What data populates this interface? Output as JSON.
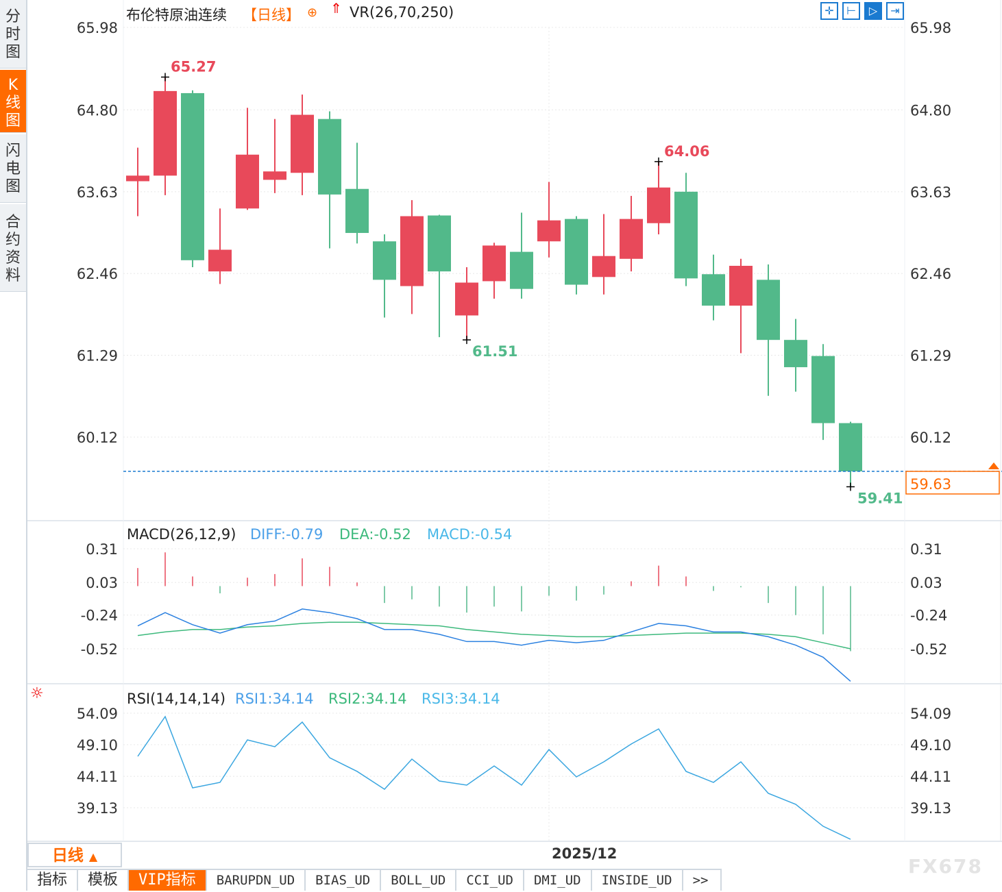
{
  "sidebar": {
    "items": [
      {
        "label": "分时图"
      },
      {
        "label": "K线图",
        "active": true
      },
      {
        "label": "闪电图"
      },
      {
        "label": "合约资料"
      }
    ]
  },
  "header": {
    "symbol": "布伦特原油连续",
    "period_tag": "【日线】",
    "vr_label": "VR(26,70,250)"
  },
  "toolbar": {
    "icons": [
      "crosshair-icon",
      "zoom-range-icon",
      "play-range-icon",
      "jump-end-icon"
    ]
  },
  "colors": {
    "up": "#e8495a",
    "down": "#52b98a",
    "diff": "#2a80e0",
    "dea": "#3cb97c",
    "rsi": "#3aa6e0",
    "accent": "#ff6a00"
  },
  "chart_data": [
    {
      "type": "candlestick",
      "ylim": [
        59.2,
        66.2
      ],
      "yticks": [
        "65.98",
        "64.80",
        "63.63",
        "62.46",
        "61.29",
        "60.12"
      ],
      "x_label": "2025/12",
      "current_price": "59.63",
      "annotations": {
        "high": "65.27",
        "local_high": "64.06",
        "local_low": "61.51",
        "low": "59.41"
      },
      "candles": [
        {
          "o": 63.78,
          "h": 64.26,
          "l": 63.28,
          "c": 63.86
        },
        {
          "o": 63.86,
          "h": 65.27,
          "l": 63.58,
          "c": 65.07
        },
        {
          "o": 65.04,
          "h": 65.08,
          "l": 62.55,
          "c": 62.65
        },
        {
          "o": 62.49,
          "h": 63.39,
          "l": 62.31,
          "c": 62.8
        },
        {
          "o": 63.39,
          "h": 64.83,
          "l": 63.37,
          "c": 64.16
        },
        {
          "o": 63.8,
          "h": 64.67,
          "l": 63.61,
          "c": 63.92
        },
        {
          "o": 63.9,
          "h": 65.02,
          "l": 63.58,
          "c": 64.73
        },
        {
          "o": 64.67,
          "h": 64.78,
          "l": 62.82,
          "c": 63.59
        },
        {
          "o": 63.67,
          "h": 64.33,
          "l": 62.89,
          "c": 63.04
        },
        {
          "o": 62.92,
          "h": 63.02,
          "l": 61.83,
          "c": 62.37
        },
        {
          "o": 62.28,
          "h": 63.51,
          "l": 61.88,
          "c": 63.28
        },
        {
          "o": 63.29,
          "h": 63.3,
          "l": 61.55,
          "c": 62.49
        },
        {
          "o": 61.86,
          "h": 62.55,
          "l": 61.51,
          "c": 62.33
        },
        {
          "o": 62.35,
          "h": 62.9,
          "l": 62.1,
          "c": 62.86
        },
        {
          "o": 62.77,
          "h": 63.33,
          "l": 62.1,
          "c": 62.24
        },
        {
          "o": 62.92,
          "h": 63.77,
          "l": 62.69,
          "c": 63.22
        },
        {
          "o": 63.24,
          "h": 63.28,
          "l": 62.16,
          "c": 62.3
        },
        {
          "o": 62.41,
          "h": 63.31,
          "l": 62.16,
          "c": 62.71
        },
        {
          "o": 62.67,
          "h": 63.57,
          "l": 62.49,
          "c": 63.24
        },
        {
          "o": 63.18,
          "h": 64.06,
          "l": 63.02,
          "c": 63.69
        },
        {
          "o": 63.63,
          "h": 63.9,
          "l": 62.28,
          "c": 62.39
        },
        {
          "o": 62.45,
          "h": 62.73,
          "l": 61.79,
          "c": 62.0
        },
        {
          "o": 62.0,
          "h": 62.67,
          "l": 61.32,
          "c": 62.57
        },
        {
          "o": 62.37,
          "h": 62.59,
          "l": 60.71,
          "c": 61.51
        },
        {
          "o": 61.51,
          "h": 61.81,
          "l": 60.77,
          "c": 61.12
        },
        {
          "o": 61.28,
          "h": 61.45,
          "l": 60.08,
          "c": 60.32
        },
        {
          "o": 60.32,
          "h": 60.34,
          "l": 59.41,
          "c": 59.63
        }
      ]
    },
    {
      "type": "line+bar",
      "title": "MACD(26,12,9)",
      "diff_label": "DIFF:-0.79",
      "dea_label": "DEA:-0.52",
      "macd_label": "MACD:-0.54",
      "yticks": [
        "0.31",
        "0.03",
        "-0.24",
        "-0.52"
      ],
      "macd": [
        0.15,
        0.28,
        0.08,
        -0.06,
        0.07,
        0.1,
        0.23,
        0.16,
        0.03,
        -0.14,
        -0.11,
        -0.17,
        -0.22,
        -0.17,
        -0.21,
        -0.08,
        -0.12,
        -0.07,
        0.04,
        0.17,
        0.08,
        -0.04,
        -0.01,
        -0.14,
        -0.24,
        -0.4,
        -0.54
      ],
      "diff": [
        -0.33,
        -0.22,
        -0.32,
        -0.39,
        -0.32,
        -0.29,
        -0.19,
        -0.22,
        -0.27,
        -0.36,
        -0.36,
        -0.4,
        -0.46,
        -0.46,
        -0.49,
        -0.45,
        -0.47,
        -0.45,
        -0.38,
        -0.31,
        -0.33,
        -0.38,
        -0.38,
        -0.42,
        -0.49,
        -0.59,
        -0.79
      ],
      "dea": [
        -0.41,
        -0.38,
        -0.36,
        -0.36,
        -0.34,
        -0.33,
        -0.31,
        -0.3,
        -0.3,
        -0.31,
        -0.32,
        -0.33,
        -0.36,
        -0.38,
        -0.4,
        -0.41,
        -0.42,
        -0.42,
        -0.41,
        -0.4,
        -0.39,
        -0.39,
        -0.39,
        -0.4,
        -0.42,
        -0.47,
        -0.52
      ]
    },
    {
      "type": "line",
      "title": "RSI(14,14,14)",
      "rsi1_label": "RSI1:34.14",
      "rsi2_label": "RSI2:34.14",
      "rsi3_label": "RSI3:34.14",
      "yticks": [
        "54.09",
        "49.10",
        "44.11",
        "39.13"
      ],
      "rsi": [
        47.26,
        53.55,
        42.27,
        43.14,
        49.86,
        48.78,
        52.68,
        47.04,
        44.88,
        42.06,
        46.83,
        43.36,
        42.71,
        45.74,
        42.71,
        48.34,
        44.01,
        46.39,
        49.21,
        51.6,
        44.88,
        43.14,
        46.39,
        41.41,
        39.67,
        36.2,
        34.14
      ]
    }
  ],
  "period_selector": {
    "label": "日线"
  },
  "bottom_tabs": [
    {
      "label": "指标"
    },
    {
      "label": "模板"
    },
    {
      "label": "VIP指标",
      "active": true
    },
    {
      "label": "BARUPDN_UD"
    },
    {
      "label": "BIAS_UD"
    },
    {
      "label": "BOLL_UD"
    },
    {
      "label": "CCI_UD"
    },
    {
      "label": "DMI_UD"
    },
    {
      "label": "INSIDE_UD"
    },
    {
      "label": ">>"
    }
  ],
  "watermark": "FX678"
}
